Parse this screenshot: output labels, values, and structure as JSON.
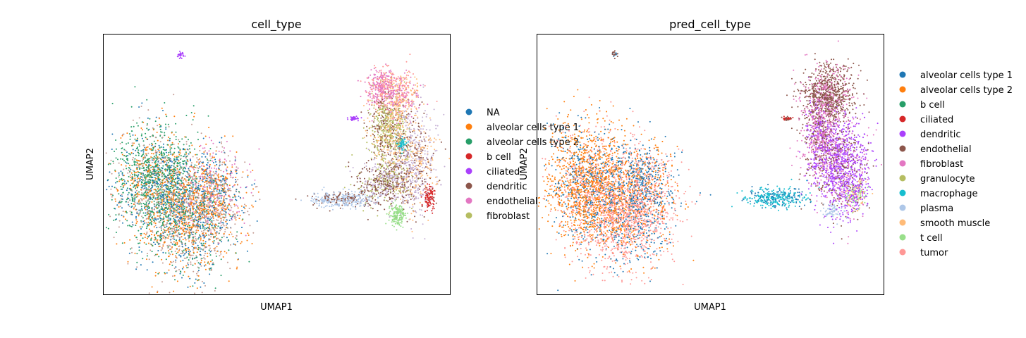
{
  "chart_data": [
    {
      "type": "scatter",
      "title": "cell_type",
      "xlabel": "UMAP1",
      "ylabel": "UMAP2",
      "xticks": false,
      "yticks": false,
      "grid": false,
      "legend_position": "right",
      "legend": [
        {
          "label": "NA",
          "color": "#1f77b4"
        },
        {
          "label": "alveolar cells type 1",
          "color": "#ff7f0e"
        },
        {
          "label": "alveolar cells type 2",
          "color": "#279e68"
        },
        {
          "label": "b cell",
          "color": "#d62728"
        },
        {
          "label": "ciliated",
          "color": "#aa40fc"
        },
        {
          "label": "dendritic",
          "color": "#8c564b"
        },
        {
          "label": "endothelial",
          "color": "#e377c2"
        },
        {
          "label": "fibroblast",
          "color": "#b5bd61"
        }
      ],
      "extra_colors": [
        "#17becf",
        "#aec7e8",
        "#ffbb78",
        "#98df8a",
        "#c5b0d5",
        "#c49c94",
        "#ff9896"
      ],
      "clusters": [
        {
          "cx": -4.0,
          "cy": 9.3,
          "sx": 0.08,
          "sy": 0.12,
          "n": 25,
          "colors": [
            4
          ]
        },
        {
          "cx": -5.3,
          "cy": 1.8,
          "sx": 1.1,
          "sy": 1.6,
          "n": 1700,
          "colors": [
            2,
            2,
            2,
            1,
            0,
            13
          ]
        },
        {
          "cx": -3.6,
          "cy": -0.6,
          "sx": 1.2,
          "sy": 1.6,
          "n": 1600,
          "colors": [
            13,
            13,
            1,
            1,
            0,
            2
          ]
        },
        {
          "cx": -2.4,
          "cy": 1.3,
          "sx": 0.9,
          "sy": 1.3,
          "n": 800,
          "colors": [
            1,
            0,
            13,
            6
          ]
        },
        {
          "cx": 6.4,
          "cy": 7.2,
          "sx": 0.35,
          "sy": 0.6,
          "n": 350,
          "colors": [
            6,
            6,
            14
          ]
        },
        {
          "cx": 7.4,
          "cy": 6.9,
          "sx": 0.5,
          "sy": 0.7,
          "n": 350,
          "colors": [
            14,
            10,
            6
          ]
        },
        {
          "cx": 6.8,
          "cy": 4.9,
          "sx": 0.5,
          "sy": 1.0,
          "n": 700,
          "colors": [
            7,
            7,
            10,
            5
          ]
        },
        {
          "cx": 8.1,
          "cy": 3.0,
          "sx": 0.6,
          "sy": 1.6,
          "n": 700,
          "colors": [
            12,
            12,
            10,
            5
          ]
        },
        {
          "cx": 6.6,
          "cy": 1.7,
          "sx": 0.7,
          "sy": 0.7,
          "n": 600,
          "colors": [
            5,
            5,
            12,
            7
          ]
        },
        {
          "cx": 4.4,
          "cy": 0.7,
          "sx": 0.8,
          "sy": 0.25,
          "n": 350,
          "colors": [
            9,
            9,
            5
          ]
        },
        {
          "cx": 7.2,
          "cy": -0.2,
          "sx": 0.2,
          "sy": 0.3,
          "n": 160,
          "colors": [
            11
          ]
        },
        {
          "cx": 8.9,
          "cy": 0.8,
          "sx": 0.15,
          "sy": 0.35,
          "n": 110,
          "colors": [
            3
          ]
        },
        {
          "cx": 7.5,
          "cy": 4.0,
          "sx": 0.12,
          "sy": 0.2,
          "n": 60,
          "colors": [
            8
          ]
        },
        {
          "cx": 5.0,
          "cy": 5.5,
          "sx": 0.15,
          "sy": 0.06,
          "n": 40,
          "colors": [
            4
          ]
        }
      ],
      "xlim": [
        -8,
        10
      ],
      "ylim": [
        -5,
        10.5
      ]
    },
    {
      "type": "scatter",
      "title": "pred_cell_type",
      "xlabel": "UMAP1",
      "ylabel": "UMAP2",
      "xticks": false,
      "yticks": false,
      "grid": false,
      "legend_position": "right",
      "legend": [
        {
          "label": "alveolar cells type 1",
          "color": "#1f77b4"
        },
        {
          "label": "alveolar cells type 2",
          "color": "#ff7f0e"
        },
        {
          "label": "b cell",
          "color": "#279e68"
        },
        {
          "label": "ciliated",
          "color": "#d62728"
        },
        {
          "label": "dendritic",
          "color": "#aa40fc"
        },
        {
          "label": "endothelial",
          "color": "#8c564b"
        },
        {
          "label": "fibroblast",
          "color": "#e377c2"
        },
        {
          "label": "granulocyte",
          "color": "#b5bd61"
        },
        {
          "label": "macrophage",
          "color": "#17becf"
        },
        {
          "label": "plasma",
          "color": "#aec7e8"
        },
        {
          "label": "smooth muscle",
          "color": "#ffbb78"
        },
        {
          "label": "t cell",
          "color": "#98df8a"
        },
        {
          "label": "tumor",
          "color": "#ff9896"
        }
      ],
      "extra_colors": [],
      "clusters": [
        {
          "cx": -4.0,
          "cy": 9.3,
          "sx": 0.08,
          "sy": 0.12,
          "n": 25,
          "colors": [
            5,
            0
          ]
        },
        {
          "cx": -5.3,
          "cy": 1.6,
          "sx": 1.1,
          "sy": 1.8,
          "n": 1900,
          "colors": [
            1,
            1,
            1,
            0,
            12
          ]
        },
        {
          "cx": -3.4,
          "cy": -0.3,
          "sx": 1.2,
          "sy": 1.5,
          "n": 1600,
          "colors": [
            12,
            12,
            12,
            0,
            1
          ]
        },
        {
          "cx": -2.6,
          "cy": 1.8,
          "sx": 0.9,
          "sy": 1.2,
          "n": 700,
          "colors": [
            0,
            0,
            12,
            1
          ]
        },
        {
          "cx": 7.1,
          "cy": 6.9,
          "sx": 0.7,
          "sy": 0.9,
          "n": 900,
          "colors": [
            5,
            5,
            5,
            6
          ]
        },
        {
          "cx": 6.7,
          "cy": 4.4,
          "sx": 0.45,
          "sy": 1.2,
          "n": 700,
          "colors": [
            6,
            6,
            4,
            5
          ]
        },
        {
          "cx": 7.8,
          "cy": 2.6,
          "sx": 0.7,
          "sy": 1.4,
          "n": 1100,
          "colors": [
            4,
            4,
            4,
            6,
            5
          ]
        },
        {
          "cx": 8.5,
          "cy": 1.0,
          "sx": 0.3,
          "sy": 0.5,
          "n": 200,
          "colors": [
            11,
            4,
            10
          ]
        },
        {
          "cx": 4.4,
          "cy": 0.8,
          "sx": 0.8,
          "sy": 0.3,
          "n": 350,
          "colors": [
            8,
            8,
            0
          ]
        },
        {
          "cx": 7.3,
          "cy": 0.0,
          "sx": 0.3,
          "sy": 0.25,
          "n": 60,
          "colors": [
            9
          ]
        },
        {
          "cx": 5.0,
          "cy": 5.5,
          "sx": 0.15,
          "sy": 0.06,
          "n": 40,
          "colors": [
            5,
            3
          ]
        }
      ],
      "xlim": [
        -8,
        10
      ],
      "ylim": [
        -5,
        10.5
      ]
    }
  ]
}
